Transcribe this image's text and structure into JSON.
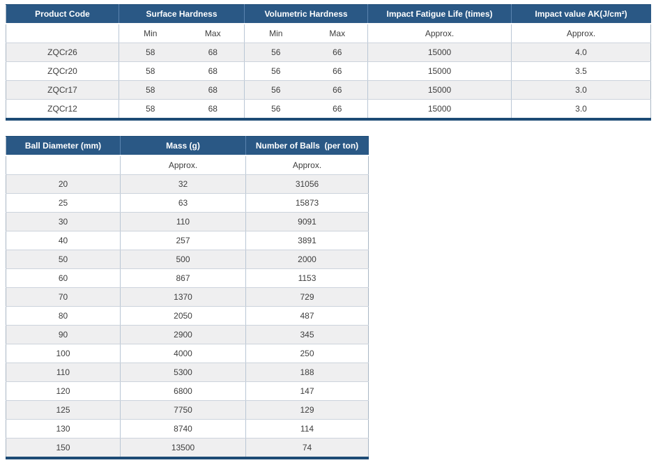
{
  "colors": {
    "header_bg": "#2a5885",
    "header_text": "#ffffff",
    "stripe": "#efeff0",
    "bottom_border": "#1d4b75",
    "body_text": "#3d3d3d"
  },
  "product_table": {
    "name": "product-spec-table",
    "header_groups": [
      {
        "label": "Product Code",
        "colspan": 1
      },
      {
        "label": "Surface Hardness",
        "colspan": 2
      },
      {
        "label": "Volumetric Hardness",
        "colspan": 2
      },
      {
        "label": "Impact Fatigue Life (times)",
        "colspan": 1
      },
      {
        "label": "Impact value AK(J/cm²)",
        "colspan": 1
      }
    ],
    "subheaders": [
      "",
      "Min",
      "Max",
      "Min",
      "Max",
      "Approx.",
      "Approx."
    ],
    "rows": [
      [
        "ZQCr26",
        "58",
        "68",
        "56",
        "66",
        "15000",
        "4.0"
      ],
      [
        "ZQCr20",
        "58",
        "68",
        "56",
        "66",
        "15000",
        "3.5"
      ],
      [
        "ZQCr17",
        "58",
        "68",
        "56",
        "66",
        "15000",
        "3.0"
      ],
      [
        "ZQCr12",
        "58",
        "68",
        "56",
        "66",
        "15000",
        "3.0"
      ]
    ]
  },
  "ball_table": {
    "name": "ball-size-table",
    "header_groups": [
      {
        "label": "Ball Diameter (mm)",
        "colspan": 1
      },
      {
        "label": "Mass (g)",
        "colspan": 1
      },
      {
        "label": "Number of Balls  (per ton)",
        "colspan": 1
      }
    ],
    "subheaders": [
      "",
      "Approx.",
      "Approx."
    ],
    "rows": [
      [
        "20",
        "32",
        "31056"
      ],
      [
        "25",
        "63",
        "15873"
      ],
      [
        "30",
        "110",
        "9091"
      ],
      [
        "40",
        "257",
        "3891"
      ],
      [
        "50",
        "500",
        "2000"
      ],
      [
        "60",
        "867",
        "1153"
      ],
      [
        "70",
        "1370",
        "729"
      ],
      [
        "80",
        "2050",
        "487"
      ],
      [
        "90",
        "2900",
        "345"
      ],
      [
        "100",
        "4000",
        "250"
      ],
      [
        "110",
        "5300",
        "188"
      ],
      [
        "120",
        "6800",
        "147"
      ],
      [
        "125",
        "7750",
        "129"
      ],
      [
        "130",
        "8740",
        "114"
      ],
      [
        "150",
        "13500",
        "74"
      ]
    ]
  }
}
